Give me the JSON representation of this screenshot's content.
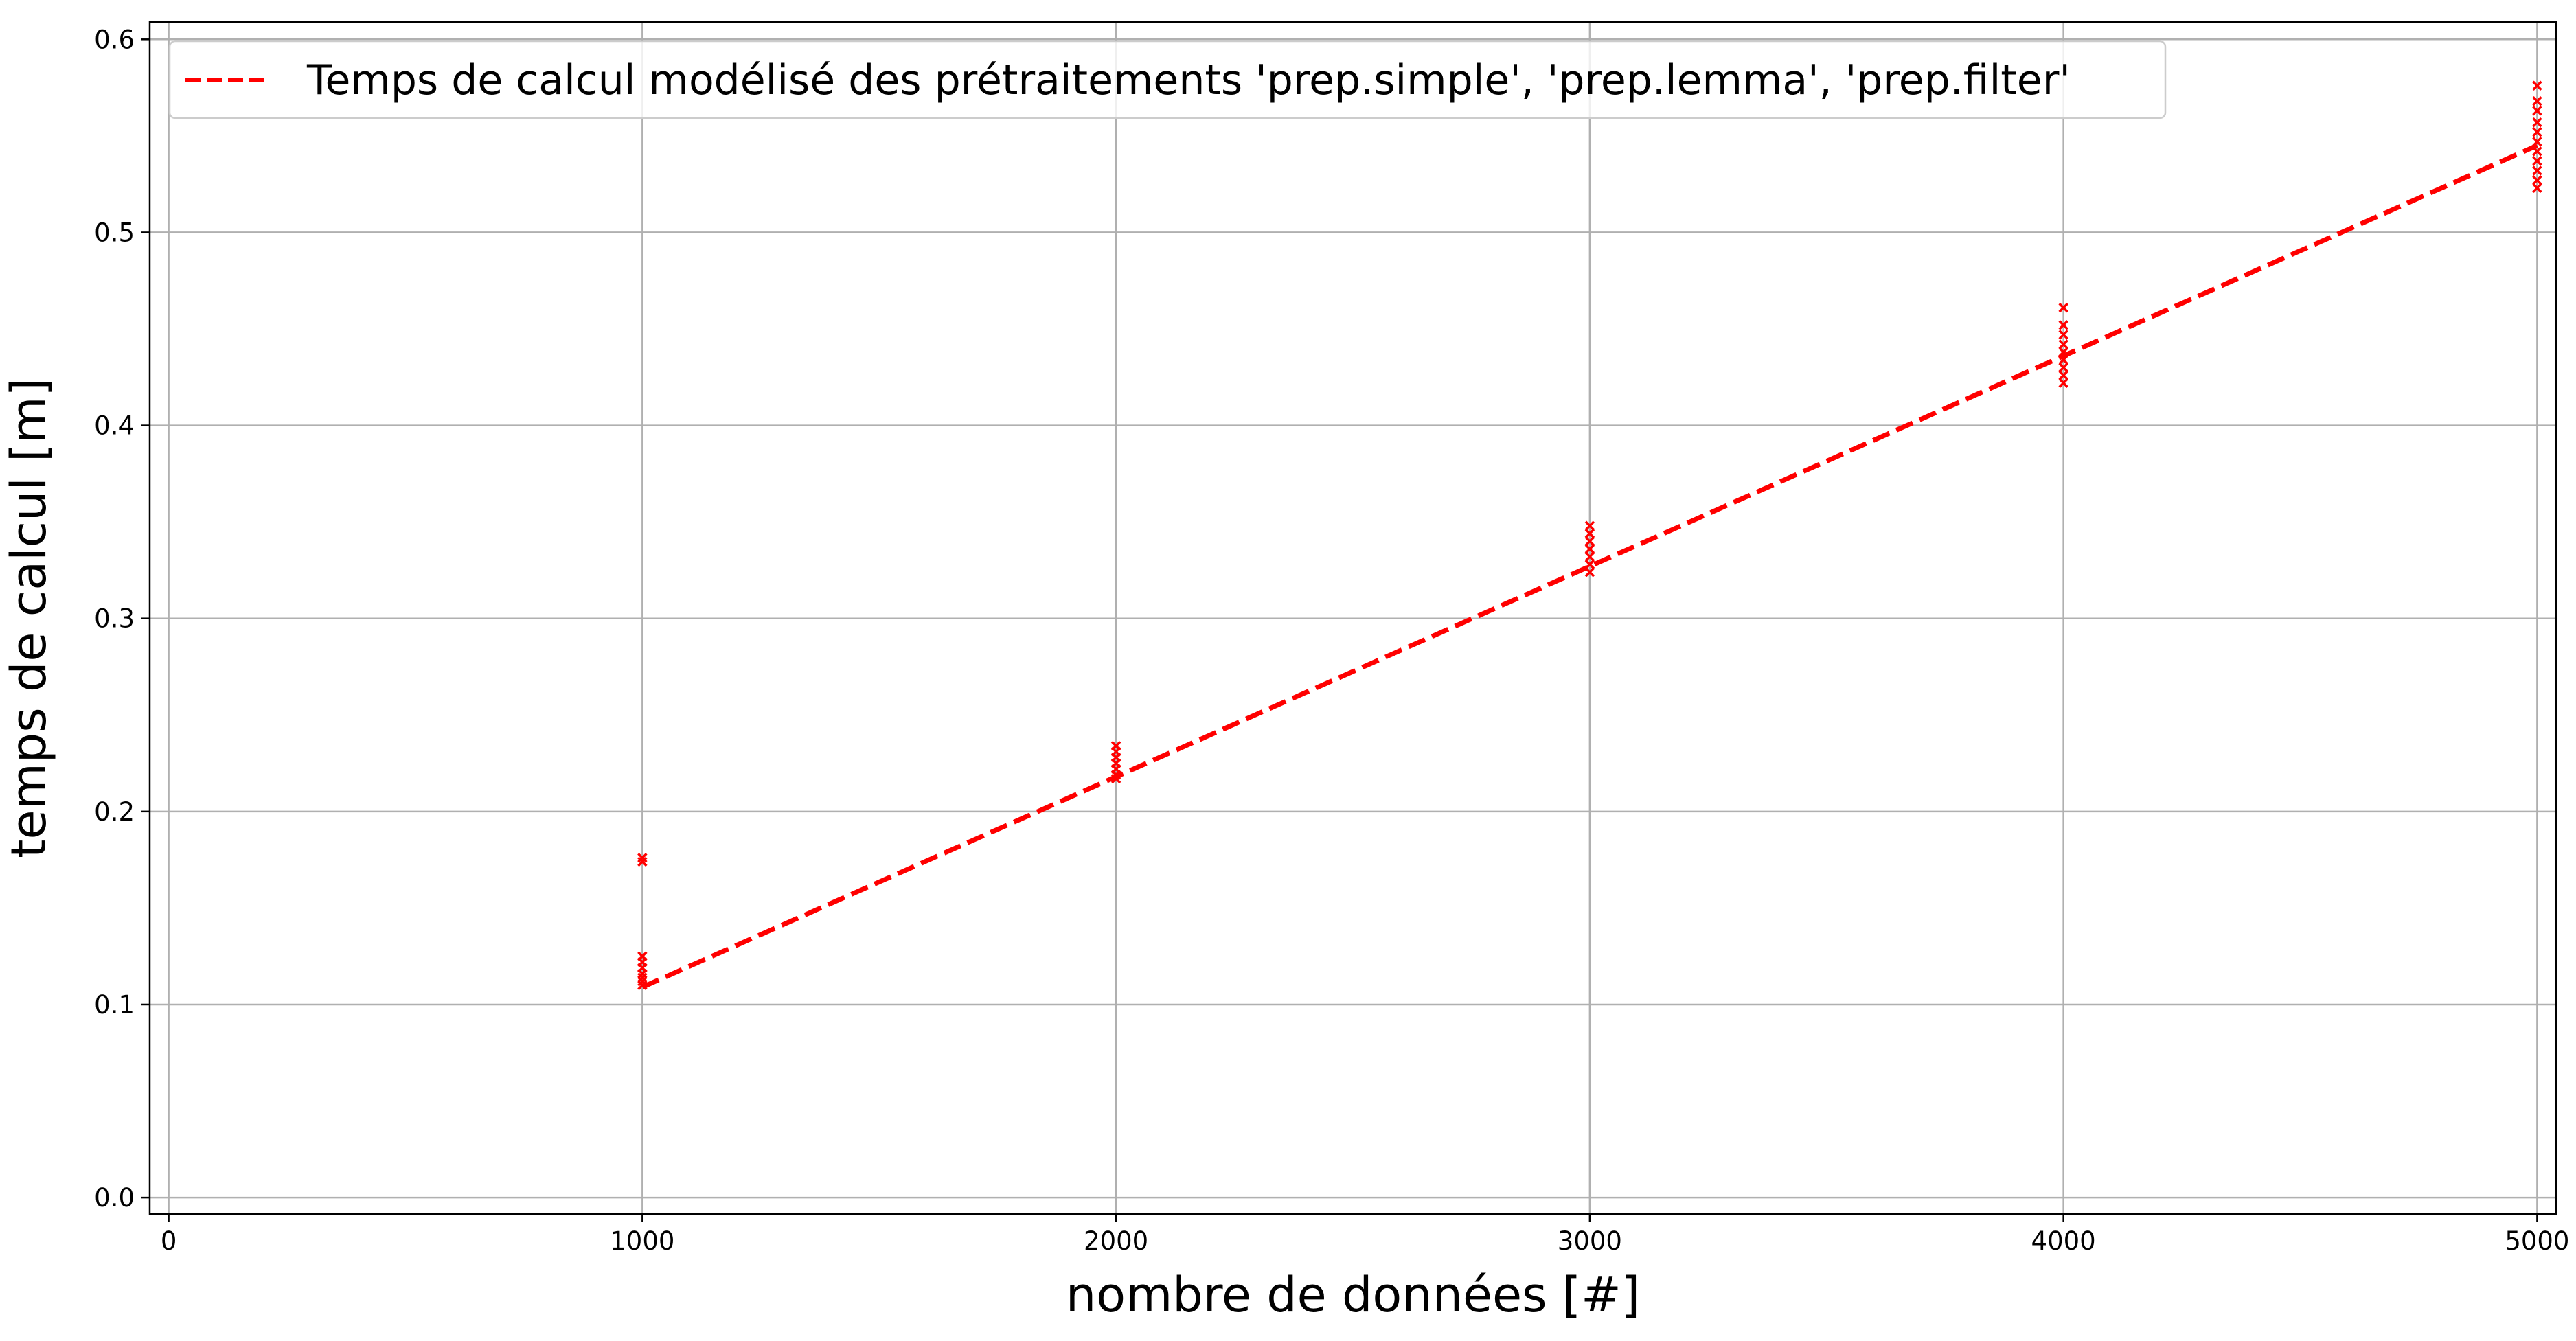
{
  "chart_data": {
    "type": "scatter",
    "xlabel": "nombre de données [#]",
    "ylabel": "temps de calcul [m]",
    "xlim": [
      -40,
      5040
    ],
    "ylim": [
      -0.0085,
      0.609
    ],
    "x_ticks": [
      0,
      1000,
      2000,
      3000,
      4000,
      5000
    ],
    "y_ticks": [
      0.0,
      0.1,
      0.2,
      0.3,
      0.4,
      0.5,
      0.6
    ],
    "x_tick_labels": [
      "0",
      "1000",
      "2000",
      "3000",
      "4000",
      "5000"
    ],
    "y_tick_labels": [
      "0.0",
      "0.1",
      "0.2",
      "0.3",
      "0.4",
      "0.5",
      "0.6"
    ],
    "grid": true,
    "legend_position": "top-left",
    "color": "#ff0000",
    "series": [
      {
        "type": "scatter",
        "marker": "x",
        "points": [
          {
            "x": 1000,
            "y": 0.176
          },
          {
            "x": 1000,
            "y": 0.174
          },
          {
            "x": 1000,
            "y": 0.125
          },
          {
            "x": 1000,
            "y": 0.122
          },
          {
            "x": 1000,
            "y": 0.119
          },
          {
            "x": 1000,
            "y": 0.116
          },
          {
            "x": 1000,
            "y": 0.114
          },
          {
            "x": 1000,
            "y": 0.112
          },
          {
            "x": 1000,
            "y": 0.11
          },
          {
            "x": 2000,
            "y": 0.234
          },
          {
            "x": 2000,
            "y": 0.231
          },
          {
            "x": 2000,
            "y": 0.228
          },
          {
            "x": 2000,
            "y": 0.225
          },
          {
            "x": 2000,
            "y": 0.222
          },
          {
            "x": 2000,
            "y": 0.219
          },
          {
            "x": 2000,
            "y": 0.217
          },
          {
            "x": 3000,
            "y": 0.348
          },
          {
            "x": 3000,
            "y": 0.344
          },
          {
            "x": 3000,
            "y": 0.34
          },
          {
            "x": 3000,
            "y": 0.336
          },
          {
            "x": 3000,
            "y": 0.332
          },
          {
            "x": 3000,
            "y": 0.328
          },
          {
            "x": 3000,
            "y": 0.324
          },
          {
            "x": 4000,
            "y": 0.461
          },
          {
            "x": 4000,
            "y": 0.452
          },
          {
            "x": 4000,
            "y": 0.447
          },
          {
            "x": 4000,
            "y": 0.442
          },
          {
            "x": 4000,
            "y": 0.438
          },
          {
            "x": 4000,
            "y": 0.434
          },
          {
            "x": 4000,
            "y": 0.43
          },
          {
            "x": 4000,
            "y": 0.426
          },
          {
            "x": 4000,
            "y": 0.422
          },
          {
            "x": 5000,
            "y": 0.576
          },
          {
            "x": 5000,
            "y": 0.568
          },
          {
            "x": 5000,
            "y": 0.563
          },
          {
            "x": 5000,
            "y": 0.557
          },
          {
            "x": 5000,
            "y": 0.552
          },
          {
            "x": 5000,
            "y": 0.547
          },
          {
            "x": 5000,
            "y": 0.542
          },
          {
            "x": 5000,
            "y": 0.537
          },
          {
            "x": 5000,
            "y": 0.532
          },
          {
            "x": 5000,
            "y": 0.527
          },
          {
            "x": 5000,
            "y": 0.523
          }
        ]
      },
      {
        "type": "line",
        "name": "Temps de calcul modélisé des prétraitements 'prep.simple', 'prep.lemma', 'prep.filter'",
        "style": "dashed",
        "x": [
          1000,
          5000
        ],
        "y": [
          0.109,
          0.545
        ]
      }
    ]
  }
}
